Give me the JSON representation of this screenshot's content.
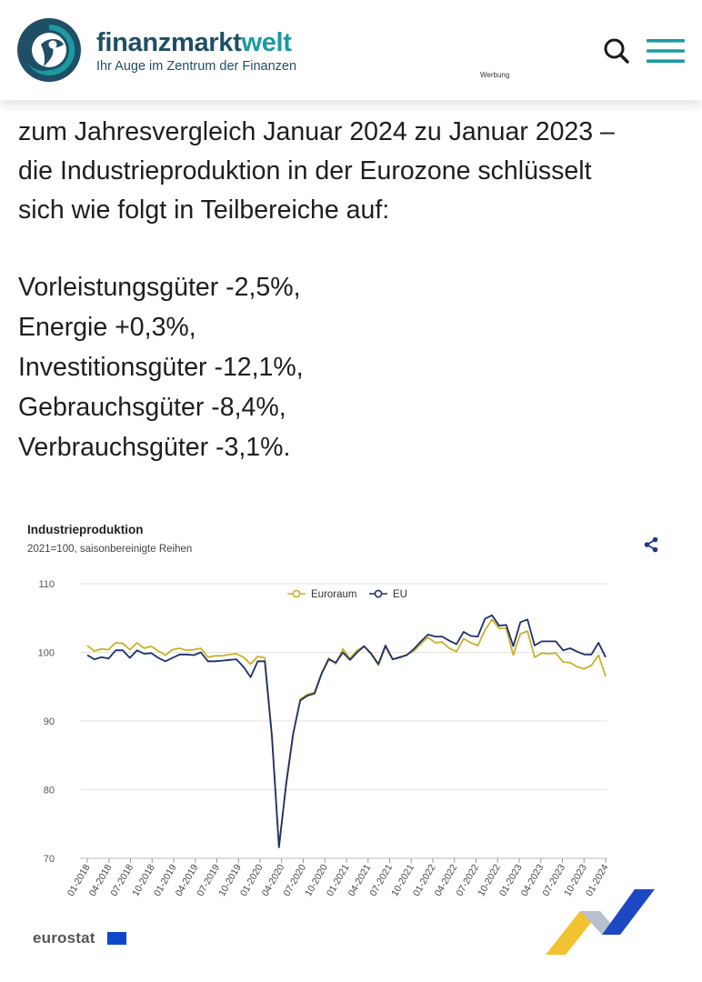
{
  "header": {
    "brand_part1": "finanzmarkt",
    "brand_part2": "welt",
    "tagline": "Ihr Auge im Zentrum der Finanzen",
    "ad_label": "Werbung",
    "icons": {
      "search": "search-icon",
      "menu": "menu-icon"
    },
    "colors": {
      "brand_dark": "#1f4f66",
      "brand_teal": "#1b9aa2"
    }
  },
  "article": {
    "paragraph_lines": [
      "zum Jahresvergleich Januar 2024 zu Januar 2023 –",
      "die Industrieproduktion in der Eurozone schlüsselt",
      "sich wie folgt in Teilbereiche auf:"
    ],
    "items": [
      "Vorleistungsgüter -2,5%,",
      "Energie +0,3%,",
      "Investitionsgüter -12,1%,",
      "Gebrauchsgüter -8,4%,",
      "Verbrauchsgüter -3,1%."
    ]
  },
  "chart_card": {
    "source_logo": "eurostat",
    "share_icon": "share-icon"
  },
  "chart_data": {
    "type": "line",
    "title": "Industrieproduktion",
    "subtitle": "2021=100, saisonbereinigte Reihen",
    "ylim": [
      70,
      110
    ],
    "yticks": [
      70,
      80,
      90,
      100,
      110
    ],
    "grid": true,
    "legend": "top-center",
    "x_tick_labels": [
      "01-2018",
      "04-2018",
      "07-2018",
      "10-2018",
      "01-2019",
      "04-2019",
      "07-2019",
      "10-2019",
      "01-2020",
      "04-2020",
      "07-2020",
      "10-2020",
      "01-2021",
      "04-2021",
      "07-2021",
      "10-2021",
      "01-2022",
      "04-2022",
      "07-2022",
      "10-2022",
      "01-2023",
      "04-2023",
      "07-2023",
      "10-2023",
      "01-2024"
    ],
    "x_start": "01-2018",
    "x_end": "01-2024",
    "series": [
      {
        "name": "Euroraum",
        "color": "#c9b12b",
        "values": [
          101.0,
          100.2,
          100.5,
          100.4,
          101.4,
          101.3,
          100.4,
          101.4,
          100.6,
          100.9,
          100.2,
          99.6,
          100.4,
          100.6,
          100.3,
          100.4,
          100.6,
          99.3,
          99.5,
          99.5,
          99.7,
          99.8,
          99.3,
          98.3,
          99.4,
          99.2,
          88.0,
          71.8,
          80.5,
          88.0,
          93.2,
          93.9,
          94.2,
          97.0,
          99.2,
          98.3,
          100.5,
          99.1,
          100.3,
          100.9,
          99.7,
          98.1,
          100.8,
          99.0,
          99.2,
          99.7,
          100.2,
          101.3,
          102.2,
          101.4,
          101.5,
          100.6,
          100.1,
          102.0,
          101.4,
          101.0,
          103.2,
          104.8,
          103.5,
          103.5,
          99.6,
          102.7,
          103.1,
          99.3,
          99.9,
          99.8,
          99.9,
          98.6,
          98.5,
          97.9,
          97.6,
          98.1,
          99.6,
          96.5
        ]
      },
      {
        "name": "EU",
        "color": "#1c2f6b",
        "values": [
          99.6,
          99.0,
          99.3,
          99.1,
          100.3,
          100.3,
          99.2,
          100.3,
          99.8,
          99.9,
          99.2,
          98.7,
          99.2,
          99.7,
          99.7,
          99.6,
          100.0,
          98.7,
          98.7,
          98.8,
          98.9,
          99.0,
          97.9,
          96.4,
          98.7,
          98.7,
          87.8,
          71.6,
          80.8,
          88.2,
          93.0,
          93.7,
          94.0,
          96.9,
          99.0,
          98.5,
          100.0,
          98.9,
          100.0,
          100.9,
          99.8,
          98.3,
          101.0,
          99.0,
          99.3,
          99.6,
          100.5,
          101.6,
          102.6,
          102.3,
          102.3,
          101.7,
          101.2,
          103.0,
          102.4,
          102.3,
          104.9,
          105.4,
          103.9,
          104.0,
          100.9,
          104.4,
          104.8,
          101.0,
          101.6,
          101.6,
          101.6,
          100.3,
          100.6,
          100.1,
          99.7,
          99.7,
          101.4,
          99.3
        ]
      }
    ]
  }
}
